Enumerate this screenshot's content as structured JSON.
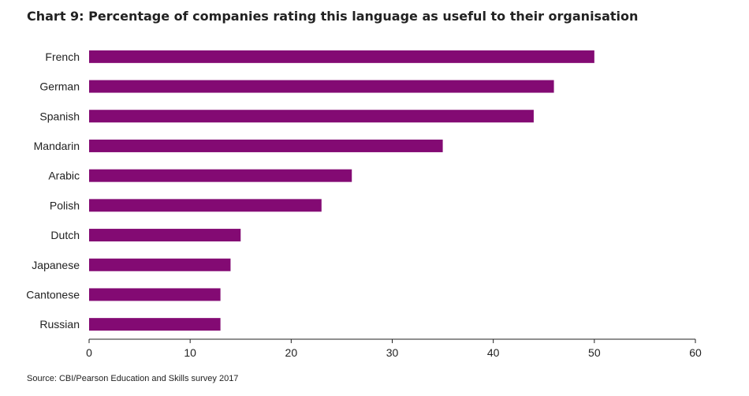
{
  "title": "Chart 9: Percentage of companies rating this language as useful to their organisation",
  "source": "Source: CBI/Pearson Education and Skills survey 2017",
  "colors": {
    "bar": "#830A73",
    "axis": "#222222",
    "text": "#222222"
  },
  "chart_data": {
    "type": "bar",
    "orientation": "horizontal",
    "title": "Chart 9: Percentage of companies rating this language as useful to their organisation",
    "xlabel": "",
    "ylabel": "",
    "xlim": [
      0,
      60
    ],
    "x_ticks": [
      "0",
      "10",
      "20",
      "30",
      "40",
      "50",
      "60"
    ],
    "grid": false,
    "categories": [
      "French",
      "German",
      "Spanish",
      "Mandarin",
      "Arabic",
      "Polish",
      "Dutch",
      "Japanese",
      "Cantonese",
      "Russian"
    ],
    "values": [
      50,
      46,
      44,
      35,
      26,
      23,
      15,
      14,
      13,
      13
    ]
  }
}
